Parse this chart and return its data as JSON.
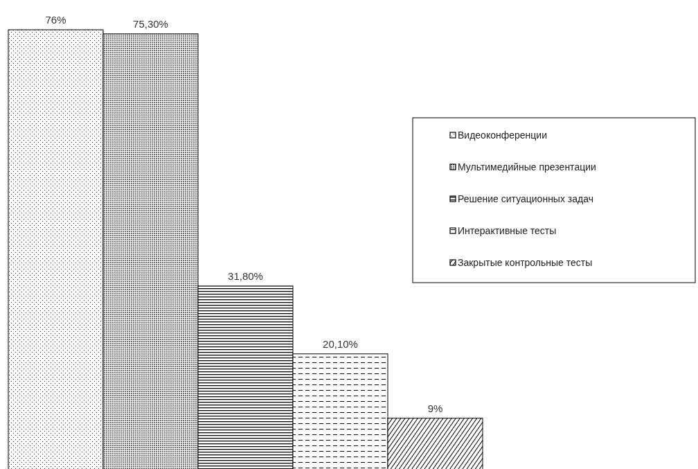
{
  "chart_data": {
    "type": "bar",
    "categories": [
      null
    ],
    "series": [
      {
        "name": "Видеоконференции",
        "color": "#000000",
        "values": [
          76
        ],
        "value_labels": [
          "76%"
        ]
      },
      {
        "name": "Мультимедийные презентации",
        "color": "#000000",
        "values": [
          75.3
        ],
        "value_labels": [
          "75,30%"
        ]
      },
      {
        "name": "Решение ситуационных задач",
        "color": "#000000",
        "values": [
          31.8
        ],
        "value_labels": [
          "31,80%"
        ]
      },
      {
        "name": "Интерактивные тесты",
        "color": "#000000",
        "values": [
          20.1
        ],
        "value_labels": [
          "20,10%"
        ]
      },
      {
        "name": "Закрытые контрольные тесты",
        "color": "#000000",
        "values": [
          9
        ],
        "value_labels": [
          "9%"
        ]
      }
    ],
    "legend": "right"
  }
}
